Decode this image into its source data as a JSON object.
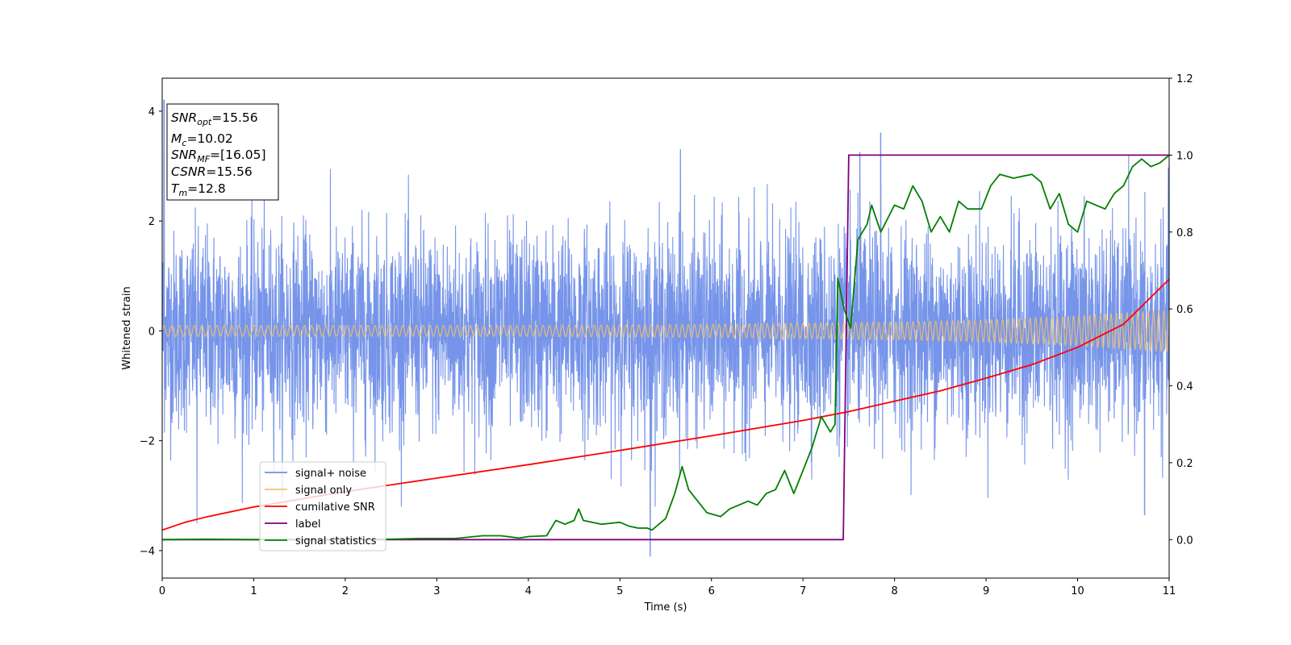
{
  "chart_data": {
    "type": "line",
    "title": "",
    "xlabel": "Time (s)",
    "ylabel_left": "Whitened strain",
    "ylabel_right": "",
    "xlim": [
      0,
      11
    ],
    "ylim_left": [
      -4.5,
      4.6
    ],
    "ylim_right": [
      -0.1,
      1.2
    ],
    "x_ticks": [
      0,
      1,
      2,
      3,
      4,
      5,
      6,
      7,
      8,
      9,
      10,
      11
    ],
    "y_ticks_left": [
      -4,
      -2,
      0,
      2,
      4
    ],
    "y_ticks_right": [
      0.0,
      0.2,
      0.4,
      0.6,
      0.8,
      1.0,
      1.2
    ],
    "y_tick_labels_left": [
      "−4",
      "−2",
      "0",
      "2",
      "4"
    ],
    "y_tick_labels_right": [
      "0.0",
      "0.2",
      "0.4",
      "0.6",
      "0.8",
      "1.0",
      "1.2"
    ],
    "grid": false,
    "legend_position": "lower-left",
    "series": [
      {
        "name": "signal+ noise",
        "axis": "left",
        "color": "#6f8ee8",
        "description_values": {
          "noise_std": 0.9,
          "peak_min": -4.1,
          "peak_max": 4.2,
          "notable_spikes": [
            [
              0.02,
              4.2
            ],
            [
              0.38,
              -3.5
            ],
            [
              5.33,
              -4.1
            ],
            [
              5.66,
              3.3
            ],
            [
              7.85,
              3.6
            ],
            [
              7.62,
              3.25
            ],
            [
              10.73,
              -3.35
            ]
          ]
        }
      },
      {
        "name": "signal only",
        "axis": "left",
        "color": "#f5c26b",
        "envelope": [
          [
            0,
            0.1
          ],
          [
            2,
            0.1
          ],
          [
            4,
            0.1
          ],
          [
            6,
            0.12
          ],
          [
            7,
            0.14
          ],
          [
            8,
            0.16
          ],
          [
            9,
            0.2
          ],
          [
            10,
            0.27
          ],
          [
            11,
            0.38
          ]
        ]
      },
      {
        "name": "cumilative SNR",
        "axis": "right",
        "color": "#ff0000",
        "points": [
          [
            0,
            0.025
          ],
          [
            0.25,
            0.045
          ],
          [
            0.5,
            0.06
          ],
          [
            1,
            0.085
          ],
          [
            2,
            0.125
          ],
          [
            3,
            0.16
          ],
          [
            4,
            0.195
          ],
          [
            5,
            0.232
          ],
          [
            6,
            0.27
          ],
          [
            7,
            0.31
          ],
          [
            7.5,
            0.333
          ],
          [
            8,
            0.36
          ],
          [
            8.5,
            0.387
          ],
          [
            9,
            0.42
          ],
          [
            9.5,
            0.455
          ],
          [
            10,
            0.5
          ],
          [
            10.5,
            0.56
          ],
          [
            11,
            0.677
          ]
        ]
      },
      {
        "name": "label",
        "axis": "right",
        "color": "#800080",
        "points": [
          [
            0,
            0
          ],
          [
            7.44,
            0
          ],
          [
            7.5,
            1.0
          ],
          [
            11,
            1.0
          ]
        ]
      },
      {
        "name": "signal statistics",
        "axis": "right",
        "color": "#008000",
        "points": [
          [
            0,
            0.0
          ],
          [
            0.5,
            0.001
          ],
          [
            1,
            0.0
          ],
          [
            1.5,
            0.0
          ],
          [
            2,
            0.0
          ],
          [
            2.5,
            0.001
          ],
          [
            2.8,
            0.003
          ],
          [
            3.2,
            0.003
          ],
          [
            3.5,
            0.01
          ],
          [
            3.7,
            0.01
          ],
          [
            3.9,
            0.004
          ],
          [
            4.0,
            0.008
          ],
          [
            4.2,
            0.01
          ],
          [
            4.3,
            0.05
          ],
          [
            4.4,
            0.04
          ],
          [
            4.5,
            0.05
          ],
          [
            4.55,
            0.08
          ],
          [
            4.6,
            0.05
          ],
          [
            4.8,
            0.04
          ],
          [
            5.0,
            0.045
          ],
          [
            5.1,
            0.035
          ],
          [
            5.2,
            0.03
          ],
          [
            5.3,
            0.03
          ],
          [
            5.35,
            0.025
          ],
          [
            5.5,
            0.055
          ],
          [
            5.6,
            0.12
          ],
          [
            5.68,
            0.19
          ],
          [
            5.75,
            0.13
          ],
          [
            5.85,
            0.1
          ],
          [
            5.95,
            0.07
          ],
          [
            6.1,
            0.06
          ],
          [
            6.2,
            0.08
          ],
          [
            6.3,
            0.09
          ],
          [
            6.4,
            0.1
          ],
          [
            6.5,
            0.09
          ],
          [
            6.6,
            0.12
          ],
          [
            6.7,
            0.13
          ],
          [
            6.8,
            0.18
          ],
          [
            6.9,
            0.12
          ],
          [
            7.0,
            0.18
          ],
          [
            7.1,
            0.24
          ],
          [
            7.2,
            0.32
          ],
          [
            7.3,
            0.28
          ],
          [
            7.35,
            0.3
          ],
          [
            7.38,
            0.68
          ],
          [
            7.45,
            0.6
          ],
          [
            7.52,
            0.55
          ],
          [
            7.6,
            0.78
          ],
          [
            7.7,
            0.82
          ],
          [
            7.75,
            0.87
          ],
          [
            7.85,
            0.8
          ],
          [
            8.0,
            0.87
          ],
          [
            8.1,
            0.86
          ],
          [
            8.2,
            0.92
          ],
          [
            8.3,
            0.88
          ],
          [
            8.4,
            0.8
          ],
          [
            8.5,
            0.84
          ],
          [
            8.6,
            0.8
          ],
          [
            8.7,
            0.88
          ],
          [
            8.8,
            0.86
          ],
          [
            8.95,
            0.86
          ],
          [
            9.05,
            0.92
          ],
          [
            9.15,
            0.95
          ],
          [
            9.3,
            0.94
          ],
          [
            9.5,
            0.95
          ],
          [
            9.6,
            0.93
          ],
          [
            9.7,
            0.86
          ],
          [
            9.8,
            0.9
          ],
          [
            9.9,
            0.82
          ],
          [
            10.0,
            0.8
          ],
          [
            10.1,
            0.88
          ],
          [
            10.2,
            0.87
          ],
          [
            10.3,
            0.86
          ],
          [
            10.4,
            0.9
          ],
          [
            10.5,
            0.92
          ],
          [
            10.6,
            0.97
          ],
          [
            10.7,
            0.99
          ],
          [
            10.8,
            0.97
          ],
          [
            10.9,
            0.98
          ],
          [
            11.0,
            1.0
          ]
        ]
      }
    ],
    "annotation": {
      "lines": [
        {
          "var": "SNR",
          "sub": "opt",
          "rest": "=15.56"
        },
        {
          "var": "M",
          "sub": "c",
          "rest": "=10.02"
        },
        {
          "var": "SNR",
          "sub": "MF",
          "rest": "=[16.05]"
        },
        {
          "var": "CSNR",
          "sub": "",
          "rest": "=15.56"
        },
        {
          "var": "T",
          "sub": "m",
          "rest": "=12.8"
        }
      ]
    }
  }
}
